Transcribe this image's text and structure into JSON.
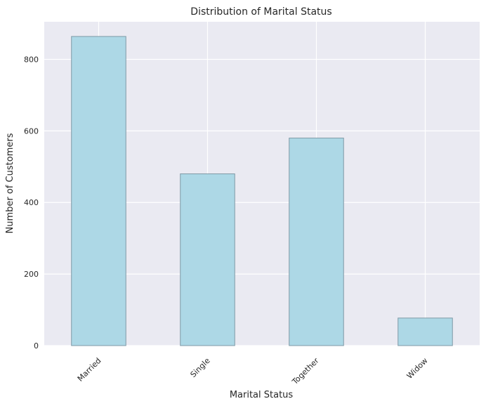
{
  "chart_data": {
    "type": "bar",
    "title": "Distribution of Marital Status",
    "xlabel": "Marital Status",
    "ylabel": "Number of Customers",
    "categories": [
      "Married",
      "Single",
      "Together",
      "Widow"
    ],
    "values": [
      864,
      480,
      580,
      77
    ],
    "ylim": [
      0,
      905
    ],
    "yticks": [
      0,
      200,
      400,
      600,
      800
    ],
    "grid": true,
    "colors": {
      "bar": "#add8e6",
      "bar_edge": "#7f9aa6",
      "plot_background": "#eaeaf2",
      "grid": "#ffffff"
    }
  }
}
